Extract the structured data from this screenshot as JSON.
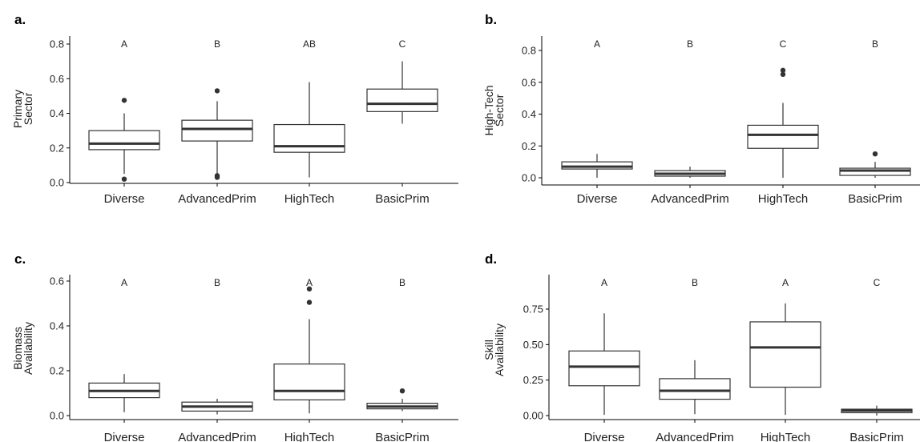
{
  "chart_data": [
    {
      "panel": "a.",
      "type": "box",
      "ylabel": [
        "Primary",
        "Sector"
      ],
      "categories": [
        "Diverse",
        "AdvancedPrim",
        "HighTech",
        "BasicPrim"
      ],
      "letters": [
        "A",
        "B",
        "AB",
        "C"
      ],
      "ylim": [
        0,
        0.8
      ],
      "yticks": [
        0.0,
        0.2,
        0.4,
        0.6,
        0.8
      ],
      "ytick_labels": [
        "0.0",
        "0.2",
        "0.4",
        "0.6",
        "0.8"
      ],
      "boxes": [
        {
          "min": 0.05,
          "q1": 0.19,
          "median": 0.225,
          "q3": 0.3,
          "max": 0.4,
          "outliers": [
            0.475,
            0.02
          ]
        },
        {
          "min": 0.05,
          "q1": 0.24,
          "median": 0.31,
          "q3": 0.36,
          "max": 0.47,
          "outliers": [
            0.53,
            0.04,
            0.03
          ]
        },
        {
          "min": 0.03,
          "q1": 0.175,
          "median": 0.21,
          "q3": 0.335,
          "max": 0.58,
          "outliers": []
        },
        {
          "min": 0.34,
          "q1": 0.41,
          "median": 0.455,
          "q3": 0.54,
          "max": 0.7,
          "outliers": []
        }
      ]
    },
    {
      "panel": "b.",
      "type": "box",
      "ylabel": [
        "High-Tech",
        "Sector"
      ],
      "categories": [
        "Diverse",
        "AdvancedPrim",
        "HighTech",
        "BasicPrim"
      ],
      "letters": [
        "A",
        "B",
        "C",
        "B"
      ],
      "ylim": [
        0,
        0.8
      ],
      "yticks": [
        0.0,
        0.2,
        0.4,
        0.6,
        0.8
      ],
      "ytick_labels": [
        "0.0",
        "0.2",
        "0.4",
        "0.6",
        "0.8"
      ],
      "boxes": [
        {
          "min": 0.0,
          "q1": 0.055,
          "median": 0.07,
          "q3": 0.1,
          "max": 0.15,
          "outliers": []
        },
        {
          "min": 0.0,
          "q1": 0.01,
          "median": 0.025,
          "q3": 0.045,
          "max": 0.07,
          "outliers": []
        },
        {
          "min": 0.0,
          "q1": 0.185,
          "median": 0.27,
          "q3": 0.33,
          "max": 0.47,
          "outliers": [
            0.675,
            0.65
          ]
        },
        {
          "min": 0.0,
          "q1": 0.015,
          "median": 0.045,
          "q3": 0.06,
          "max": 0.1,
          "outliers": [
            0.15
          ]
        }
      ]
    },
    {
      "panel": "c.",
      "type": "box",
      "ylabel": [
        "Biomass",
        "Availability"
      ],
      "categories": [
        "Diverse",
        "AdvancedPrim",
        "HighTech",
        "BasicPrim"
      ],
      "letters": [
        "A",
        "B",
        "A",
        "B"
      ],
      "ylim": [
        0,
        0.6
      ],
      "yticks": [
        0.0,
        0.2,
        0.4,
        0.6
      ],
      "ytick_labels": [
        "0.0",
        "0.2",
        "0.4",
        "0.6"
      ],
      "boxes": [
        {
          "min": 0.015,
          "q1": 0.08,
          "median": 0.11,
          "q3": 0.145,
          "max": 0.185,
          "outliers": []
        },
        {
          "min": 0.005,
          "q1": 0.02,
          "median": 0.04,
          "q3": 0.06,
          "max": 0.075,
          "outliers": []
        },
        {
          "min": 0.01,
          "q1": 0.07,
          "median": 0.11,
          "q3": 0.23,
          "max": 0.43,
          "outliers": [
            0.565,
            0.505
          ]
        },
        {
          "min": 0.02,
          "q1": 0.03,
          "median": 0.04,
          "q3": 0.055,
          "max": 0.075,
          "outliers": [
            0.11
          ]
        }
      ]
    },
    {
      "panel": "d.",
      "type": "box",
      "ylabel": [
        "Skill",
        "Availability"
      ],
      "categories": [
        "Diverse",
        "AdvancedPrim",
        "HighTech",
        "BasicPrim"
      ],
      "letters": [
        "A",
        "B",
        "A",
        "C"
      ],
      "ylim": [
        0,
        0.75
      ],
      "yticks": [
        0.0,
        0.25,
        0.5,
        0.75
      ],
      "ytick_labels": [
        "0.00",
        "0.25",
        "0.50",
        "0.75"
      ],
      "boxes": [
        {
          "min": 0.005,
          "q1": 0.21,
          "median": 0.345,
          "q3": 0.455,
          "max": 0.72,
          "outliers": []
        },
        {
          "min": 0.01,
          "q1": 0.115,
          "median": 0.175,
          "q3": 0.26,
          "max": 0.39,
          "outliers": []
        },
        {
          "min": 0.005,
          "q1": 0.2,
          "median": 0.48,
          "q3": 0.66,
          "max": 0.79,
          "outliers": []
        },
        {
          "min": 0.0,
          "q1": 0.02,
          "median": 0.035,
          "q3": 0.045,
          "max": 0.07,
          "outliers": []
        }
      ]
    }
  ]
}
